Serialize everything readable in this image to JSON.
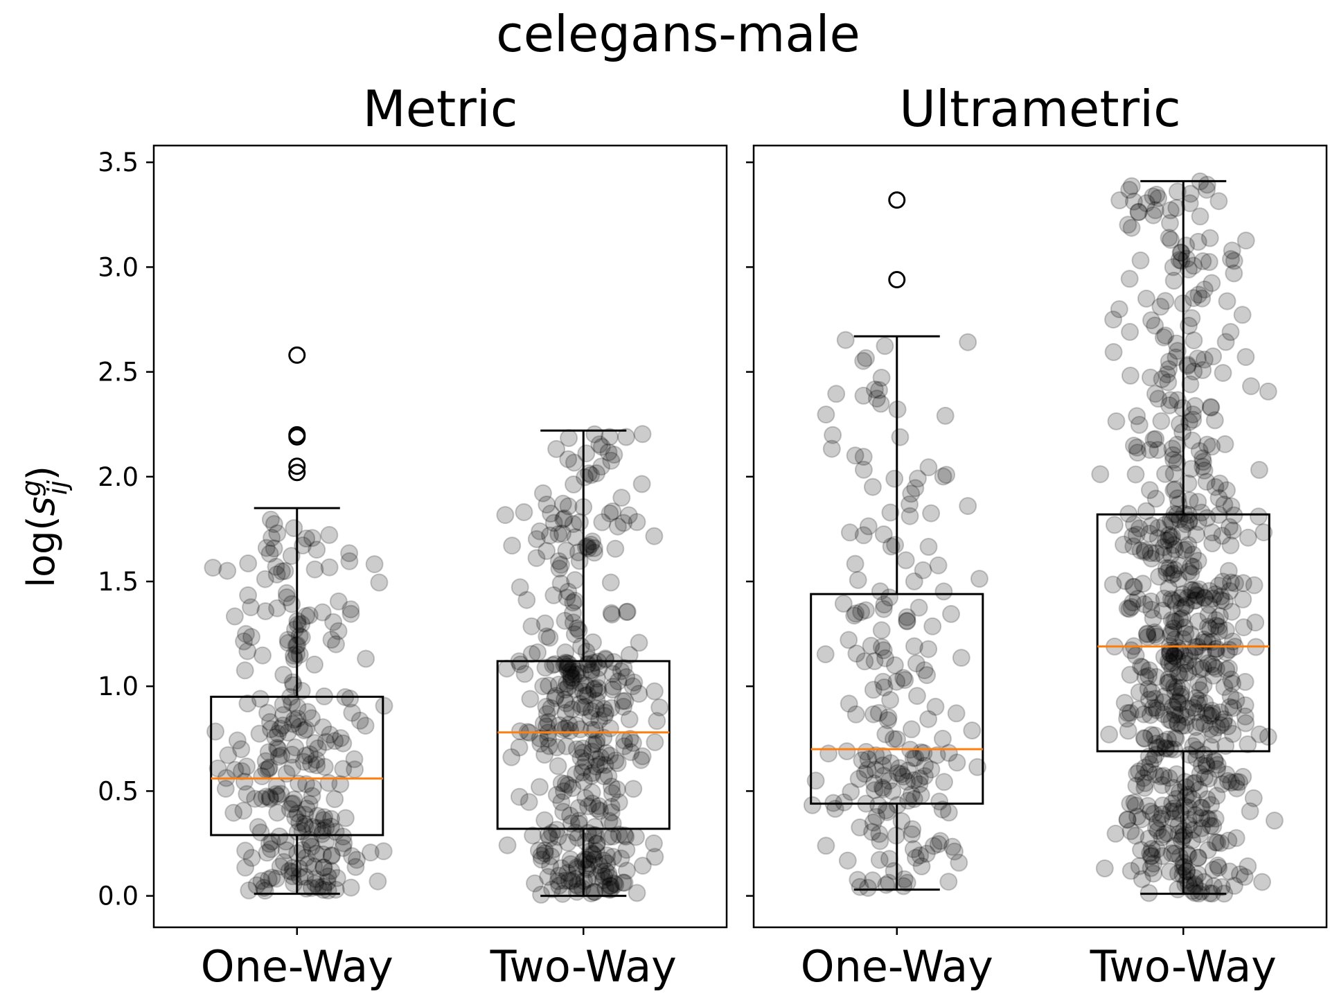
{
  "figure": {
    "suptitle": "celegans-male",
    "ylabel_base": "log(",
    "ylabel_var": "s",
    "ylabel_sup": "g",
    "ylabel_sub": "ij",
    "ylabel_close": ")"
  },
  "colors": {
    "median": "#ff7f0e",
    "box": "#000000",
    "points": "#000000"
  },
  "chart_data": [
    {
      "type": "box",
      "title": "Metric",
      "categories": [
        "One-Way",
        "Two-Way"
      ],
      "ylim": [
        -0.15,
        3.58
      ],
      "yticks": [
        0.0,
        0.5,
        1.0,
        1.5,
        2.0,
        2.5,
        3.0,
        3.5
      ],
      "ytick_labels": [
        "0.0",
        "0.5",
        "1.0",
        "1.5",
        "2.0",
        "2.5",
        "3.0",
        "3.5"
      ],
      "boxes": [
        {
          "name": "One-Way",
          "whislo": 0.01,
          "q1": 0.29,
          "median": 0.56,
          "q3": 0.95,
          "whishi": 1.85,
          "fliers": [
            2.58,
            2.2,
            2.19,
            2.05,
            2.02
          ],
          "n_points": 260
        },
        {
          "name": "Two-Way",
          "whislo": 0.0,
          "q1": 0.32,
          "median": 0.78,
          "q3": 1.12,
          "whishi": 2.22,
          "fliers": [],
          "n_points": 380
        }
      ]
    },
    {
      "type": "box",
      "title": "Ultrametric",
      "categories": [
        "One-Way",
        "Two-Way"
      ],
      "ylim": [
        -0.15,
        3.58
      ],
      "yticks": [
        0.0,
        0.5,
        1.0,
        1.5,
        2.0,
        2.5,
        3.0,
        3.5
      ],
      "ytick_labels": [],
      "boxes": [
        {
          "name": "One-Way",
          "whislo": 0.03,
          "q1": 0.44,
          "median": 0.7,
          "q3": 1.44,
          "whishi": 2.67,
          "fliers": [
            3.32,
            2.94
          ],
          "n_points": 200
        },
        {
          "name": "Two-Way",
          "whislo": 0.01,
          "q1": 0.69,
          "median": 1.19,
          "q3": 1.82,
          "whishi": 3.41,
          "fliers": [],
          "n_points": 650
        }
      ]
    }
  ]
}
